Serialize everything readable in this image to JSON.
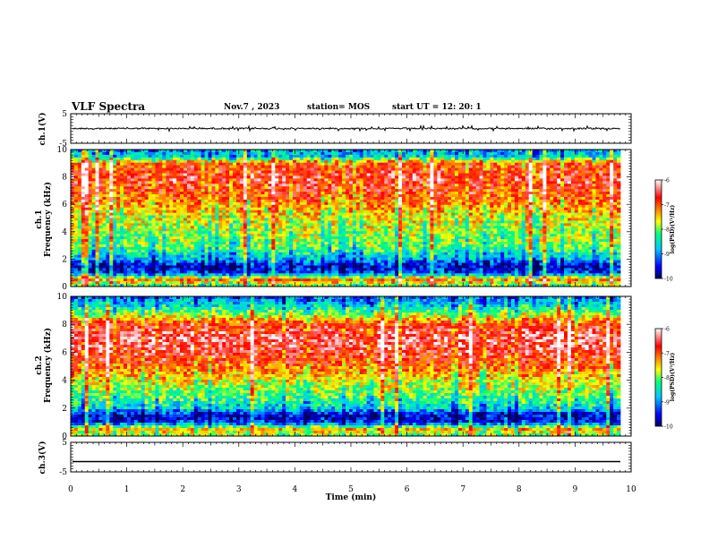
{
  "header": {
    "title": "VLF Spectra",
    "date": "Nov.7 , 2023",
    "station": "station= MOS",
    "start": "start UT = 12: 20: 1"
  },
  "chart_data": {
    "type": "heatmap",
    "xlabel": "Time (min)",
    "xlim": [
      0,
      10
    ],
    "xticks": [
      0,
      1,
      2,
      3,
      4,
      5,
      6,
      7,
      8,
      9,
      10
    ],
    "panels": [
      {
        "id": "ch1-waveform",
        "type": "line",
        "ylabel": "ch.1(V)",
        "ylim": [
          -5,
          5
        ],
        "yticks": [
          "5",
          "-5"
        ],
        "trace_level": 0.0
      },
      {
        "id": "ch1-spectrogram",
        "type": "heatmap",
        "ylabel_line1": "ch.1",
        "ylabel_line2": "Frequency (kHz)",
        "ylim": [
          0,
          10
        ],
        "yticks": [
          0,
          2,
          4,
          6,
          8,
          10
        ],
        "colorbar": {
          "label": "log(PSD)(V²/Hz)",
          "range": [
            -10,
            -6
          ],
          "ticks": [
            "-6",
            "-7",
            "-8",
            "-9",
            "-10"
          ]
        },
        "intensity_profile_khz": [
          [
            0.0,
            -8.2
          ],
          [
            0.5,
            -7.0
          ],
          [
            1.0,
            -9.3
          ],
          [
            1.5,
            -9.6
          ],
          [
            2.0,
            -8.8
          ],
          [
            3.0,
            -8.0
          ],
          [
            4.0,
            -7.8
          ],
          [
            5.0,
            -7.6
          ],
          [
            6.0,
            -7.2
          ],
          [
            7.0,
            -6.8
          ],
          [
            8.0,
            -6.6
          ],
          [
            9.0,
            -7.0
          ],
          [
            9.5,
            -8.6
          ],
          [
            10.0,
            -8.8
          ]
        ]
      },
      {
        "id": "ch2-spectrogram",
        "type": "heatmap",
        "ylabel_line1": "ch.2",
        "ylabel_line2": "Frequency (kHz)",
        "ylim": [
          0,
          10
        ],
        "yticks": [
          0,
          2,
          4,
          6,
          8,
          10
        ],
        "colorbar": {
          "label": "log(PSD)(V²/Hz)",
          "range": [
            -10,
            -6
          ],
          "ticks": [
            "-6",
            "-7",
            "-8",
            "-9",
            "-10"
          ]
        },
        "intensity_profile_khz": [
          [
            0.0,
            -8.0
          ],
          [
            0.5,
            -7.4
          ],
          [
            1.0,
            -9.4
          ],
          [
            1.5,
            -9.6
          ],
          [
            2.0,
            -8.6
          ],
          [
            3.0,
            -8.0
          ],
          [
            4.0,
            -7.6
          ],
          [
            5.0,
            -7.0
          ],
          [
            6.0,
            -6.6
          ],
          [
            7.0,
            -6.4
          ],
          [
            8.0,
            -6.8
          ],
          [
            9.0,
            -8.2
          ],
          [
            10.0,
            -9.2
          ]
        ]
      },
      {
        "id": "ch3-waveform",
        "type": "line",
        "ylabel": "ch.3(V)",
        "ylim": [
          -5,
          5
        ],
        "yticks": [
          "5",
          "-5"
        ],
        "trace_level": -1.5
      }
    ]
  }
}
